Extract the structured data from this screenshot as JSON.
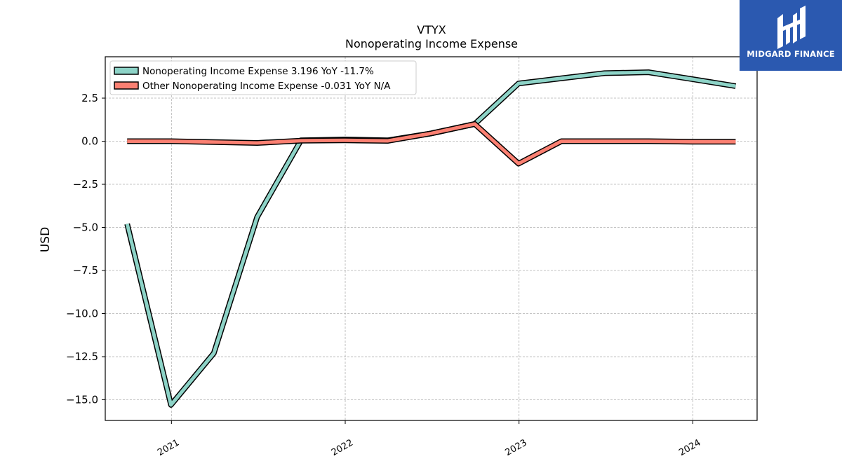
{
  "brand": {
    "name": "MIDGARD FINANCE",
    "background": "#2b59b0",
    "icon": "midgard-logo-icon"
  },
  "chart_data": {
    "type": "line",
    "title": "VTYX",
    "subtitle": "Nonoperating Income Expense",
    "xlabel": "",
    "ylabel": "USD",
    "x": [
      "2020-09-30",
      "2020-12-31",
      "2021-03-31",
      "2021-06-30",
      "2021-09-30",
      "2021-12-31",
      "2022-03-31",
      "2022-06-30",
      "2022-09-30",
      "2022-12-31",
      "2023-03-31",
      "2023-06-30",
      "2023-09-30",
      "2023-12-31",
      "2024-03-31"
    ],
    "xticks": [
      "2021",
      "2022",
      "2023",
      "2024"
    ],
    "xtick_dates": [
      "2021-01-01",
      "2022-01-01",
      "2023-01-01",
      "2024-01-01"
    ],
    "xlim": [
      "2020-08-15",
      "2024-05-15"
    ],
    "ylim": [
      -16.2,
      4.9
    ],
    "yticks": [
      2.5,
      0.0,
      -2.5,
      -5.0,
      -7.5,
      -10.0,
      -12.5,
      -15.0
    ],
    "ytick_labels": [
      "2.5",
      "0.0",
      "−2.5",
      "−5.0",
      "−7.5",
      "−10.0",
      "−12.5",
      "−15.0"
    ],
    "grid": true,
    "legend_position": "top-left",
    "series": [
      {
        "name": "Nonoperating Income Expense  3.196 YoY -11.7%",
        "color": "#8dd3c7",
        "values": [
          -4.8,
          -15.3,
          -12.3,
          -4.4,
          0.05,
          0.1,
          0.05,
          0.45,
          1.0,
          3.35,
          3.65,
          3.95,
          4.0,
          3.6,
          3.196
        ]
      },
      {
        "name": "Other Nonoperating Income Expense  -0.031 YoY N/A",
        "color": "#fb8072",
        "values": [
          0.0,
          0.0,
          -0.05,
          -0.1,
          0.03,
          0.05,
          0.02,
          0.45,
          1.0,
          -1.3,
          0.0,
          0.0,
          0.0,
          -0.03,
          -0.031
        ]
      }
    ]
  }
}
